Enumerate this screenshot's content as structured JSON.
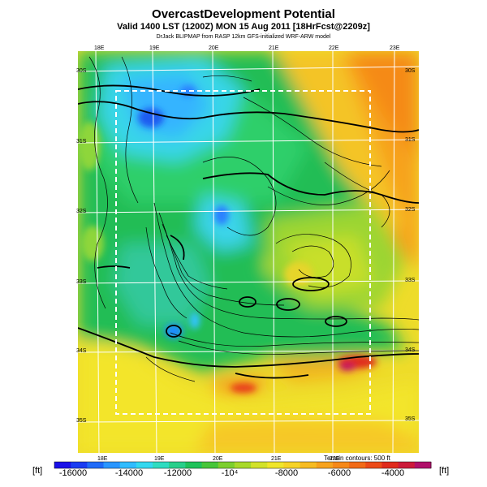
{
  "header": {
    "title": "OvercastDevelopment Potential",
    "valid_line": "Valid 1400 LST (1200Z) MON 15 Aug 2011 [18HrFcst@2209z]",
    "credit_line": "DrJack BLIPMAP from RASP 12km GFS-initialized WRF-ARW model"
  },
  "map": {
    "lon_labels_top": [
      "18E",
      "19E",
      "20E",
      "21E",
      "22E",
      "23E"
    ],
    "lon_labels_bottom": [
      "18E",
      "19E",
      "20E",
      "21E",
      "22E"
    ],
    "lat_labels_left": [
      "30S",
      "31S",
      "32S",
      "33S",
      "34S",
      "35S"
    ],
    "lat_labels_right": [
      "30S",
      "31S",
      "32S",
      "33S",
      "34S",
      "35S"
    ],
    "colors": {
      "deep_blue": "#1530e0",
      "blue": "#2aa6ff",
      "cyan": "#2fdcef",
      "green": "#1bbf55",
      "light_green": "#6fcf30",
      "yellow": "#f2e62b",
      "orange": "#f79b1a",
      "red": "#e22a1c",
      "magenta": "#b0106a"
    }
  },
  "colorbar": {
    "tick_labels": [
      "-16000",
      "-14000",
      "-12000",
      "-10⁴",
      "-8000",
      "-6000",
      "-4000"
    ],
    "unit_left": "[ft]",
    "unit_right": "[ft]",
    "terrain_note": "Terrain contours: 500 ft"
  }
}
